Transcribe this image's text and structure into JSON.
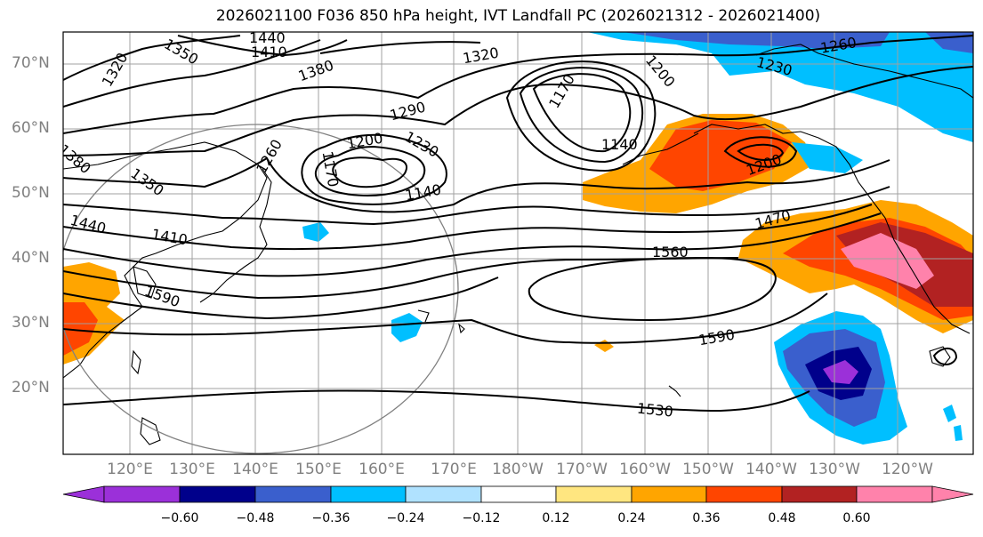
{
  "title": "2026021100 F036 850 hPa height, IVT Landfall PC (2026021312 - 2026021400)",
  "lat_labels": [
    "70°N",
    "60°N",
    "50°N",
    "40°N",
    "30°N",
    "20°N"
  ],
  "lon_labels": [
    "120°E",
    "130°E",
    "140°E",
    "150°E",
    "160°E",
    "170°E",
    "180°W",
    "170°W",
    "160°W",
    "150°W",
    "140°W",
    "130°W",
    "120°W"
  ],
  "contour_labels": [
    "1440",
    "1410",
    "1320",
    "1350",
    "1380",
    "1320",
    "1260",
    "1230",
    "1200",
    "1170",
    "1290",
    "1200",
    "1230",
    "1260",
    "1170",
    "1140",
    "1140",
    "1380",
    "1350",
    "1440",
    "1410",
    "1590",
    "1560",
    "1470",
    "1590",
    "1530",
    "1200"
  ],
  "colorbar": {
    "tick_labels": [
      "−0.60",
      "−0.48",
      "−0.36",
      "−0.24",
      "−0.12",
      "0.12",
      "0.24",
      "0.36",
      "0.48",
      "0.60"
    ],
    "colors": [
      "#9b30d9",
      "#00008b",
      "#3a5fcd",
      "#00bfff",
      "#b0e2ff",
      "#ffffff",
      "#ffe680",
      "#ffa500",
      "#ff4500",
      "#b22222",
      "#ff82ab",
      "#ff82ab"
    ]
  }
}
